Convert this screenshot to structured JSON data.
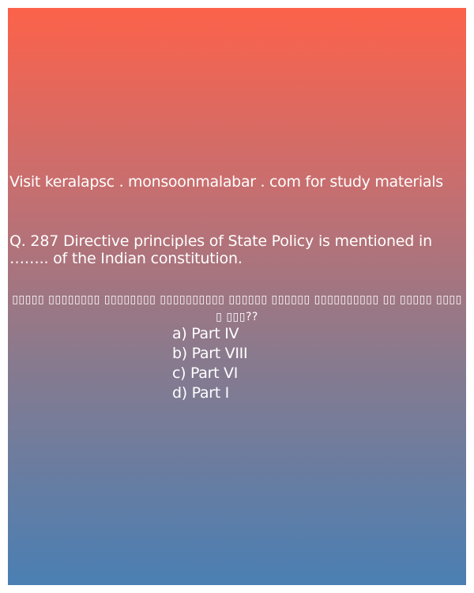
{
  "promo_text": "Visit keralapsc . monsoonmalabar . com for study materials",
  "question": {
    "text": "Q. 287 Directive principles of State Policy is mentioned in …….. of the Indian constitution.",
    "malayalam_text": "▯▯▯▯▯ ▯▯▯▯▯▯▯▯ ▯▯▯▯▯▯▯▯ ▯▯▯▯▯▯▯▯▯▯ ▯▯▯▯▯▯ ▯▯▯▯▯▯ ▯▯▯▯▯▯▯▯▯▯ ▯▯ ▯▯▯▯▯ ▯▯▯▯▯ ▯▯▯??"
  },
  "options": [
    "a) Part IV",
    "b) Part VIII",
    "c) Part VI",
    "d) Part I"
  ],
  "colors": {
    "gradient_top": "#fc624a",
    "gradient_bottom": "#4a7fb3",
    "text": "#ffffff"
  }
}
